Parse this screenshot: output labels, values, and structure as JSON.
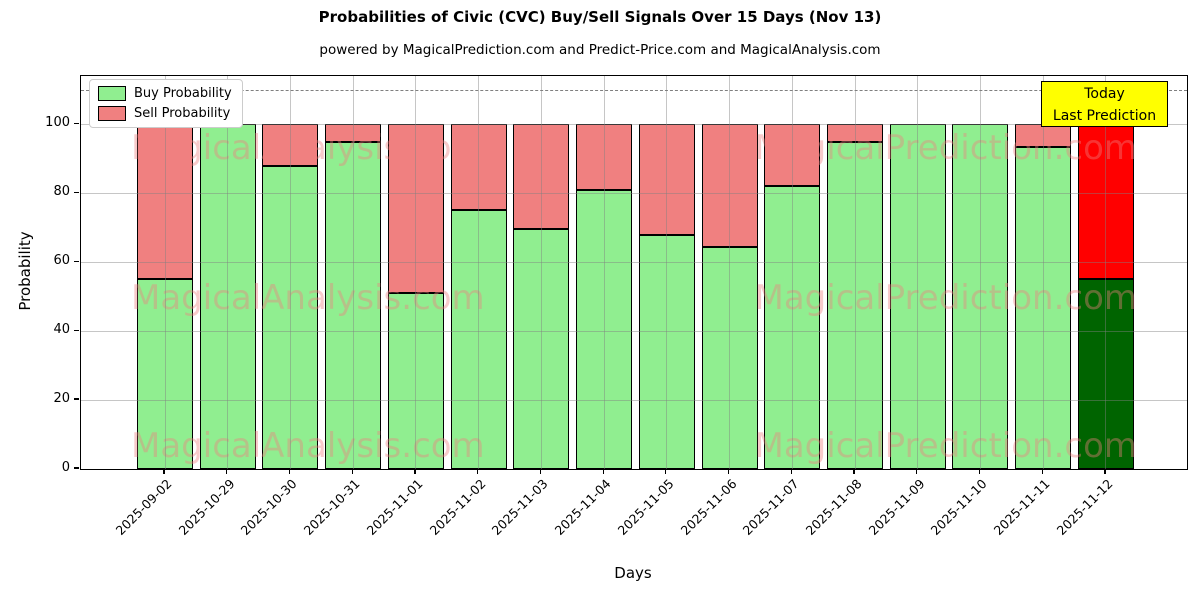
{
  "chart_data": {
    "type": "bar",
    "title": "Probabilities of Civic (CVC) Buy/Sell Signals Over 15 Days (Nov 13)",
    "subtitle": "powered by MagicalPrediction.com and Predict-Price.com and MagicalAnalysis.com",
    "xlabel": "Days",
    "ylabel": "Probability",
    "ylim": [
      0,
      114
    ],
    "yticks": [
      0,
      20,
      40,
      60,
      80,
      100
    ],
    "dashed_line_y": 110,
    "grid": true,
    "categories": [
      "2025-09-02",
      "2025-10-29",
      "2025-10-30",
      "2025-10-31",
      "2025-11-01",
      "2025-11-02",
      "2025-11-03",
      "2025-11-04",
      "2025-11-05",
      "2025-11-06",
      "2025-11-07",
      "2025-11-08",
      "2025-11-09",
      "2025-11-10",
      "2025-11-11",
      "2025-11-12"
    ],
    "series": [
      {
        "name": "Buy Probability",
        "color": "#90EE90",
        "values": [
          55,
          100,
          88,
          95,
          51,
          75,
          69.5,
          81,
          68,
          64.5,
          82,
          95,
          100,
          100,
          93.5,
          55
        ]
      },
      {
        "name": "Sell Probability",
        "color": "#F08080",
        "values": [
          45,
          0,
          12,
          5,
          49,
          25,
          30.5,
          19,
          32,
          35.5,
          18,
          5,
          0,
          0,
          6.5,
          45
        ]
      }
    ],
    "today_bar": {
      "index": 15,
      "buy_color": "#006400",
      "sell_color": "#FF0000"
    },
    "legend": {
      "position": "top-left",
      "entries": [
        {
          "label": "Buy Probability",
          "color": "#90EE90"
        },
        {
          "label": "Sell Probability",
          "color": "#F08080"
        }
      ]
    },
    "annotation_box": {
      "lines": [
        "Today",
        "Last Prediction"
      ],
      "bg": "#FFFF00",
      "border": "#000000"
    },
    "watermarks": [
      "MagicalAnalysis.com",
      "MagicalPrediction.com"
    ],
    "watermark_color": "#f08080"
  }
}
